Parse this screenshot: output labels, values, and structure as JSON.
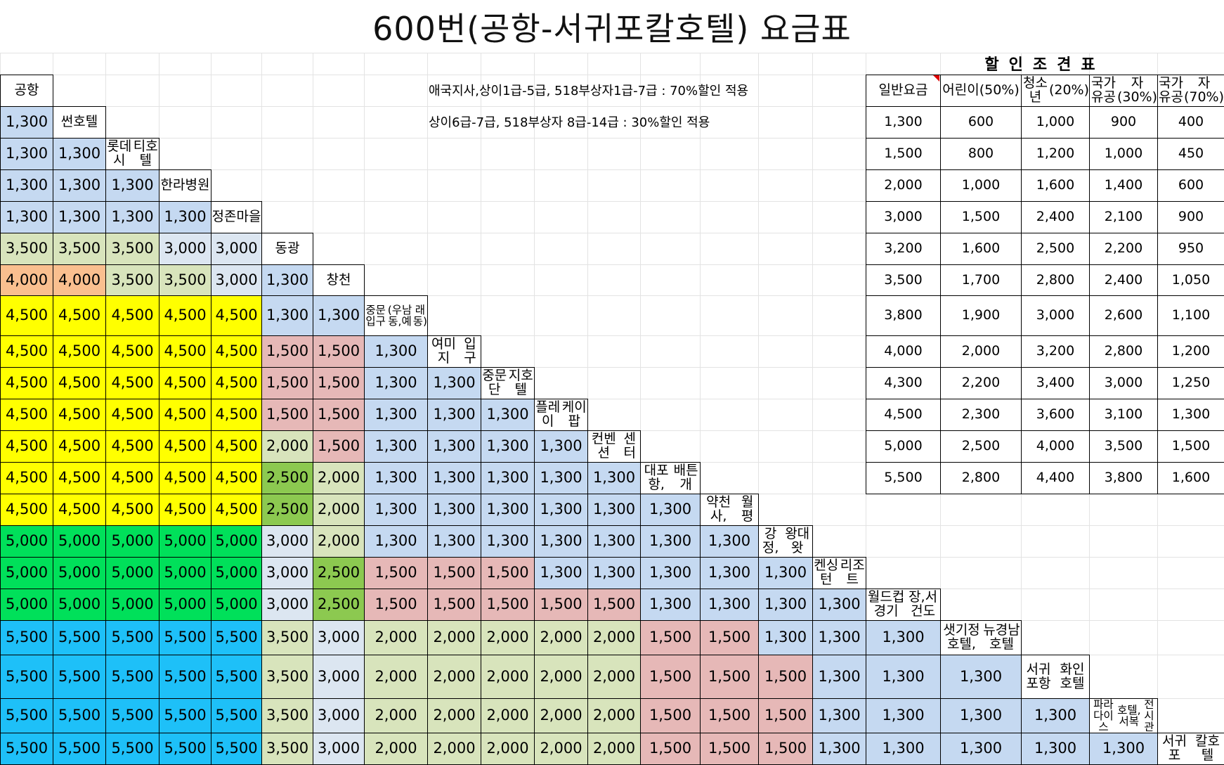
{
  "title": "600번(공항-서귀포칼호텔) 요금표",
  "stops": [
    "공항",
    "썬호텔",
    "롯데시티호텔",
    "한라병원",
    "정존마을",
    "동광",
    "창천",
    "중문입구(우남동,예래동)",
    "여미지입구",
    "중문단지호텔",
    "플레이케이팝",
    "컨벤션센터",
    "대포항,배튼개",
    "약천사,월평",
    "강정,왕대왓",
    "켄싱턴리조트",
    "월드컵경기장,서건도",
    "샛기정호텔,뉴경남호텔",
    "서귀포항화인호텔",
    "파라다이스호텔,서복전시관",
    "서귀포칼호텔"
  ],
  "stop_labels": [
    [
      "공항"
    ],
    [
      "썬호텔"
    ],
    [
      "롯데시",
      "티호텔"
    ],
    [
      "한라",
      "병원"
    ],
    [
      "정존",
      "마을"
    ],
    [
      "동광"
    ],
    [
      "창천"
    ],
    [
      "중문입구",
      "(우남동,예",
      "래동)"
    ],
    [
      "여미지",
      "입구"
    ],
    [
      "중문단",
      "지호텔"
    ],
    [
      "플레이",
      "케이팝"
    ],
    [
      "컨벤션",
      "센터"
    ],
    [
      "대포항,",
      "배튼개"
    ],
    [
      "약천사,",
      "월평"
    ],
    [
      "강정,",
      "왕대왓"
    ],
    [
      "켄싱턴",
      "리조트"
    ],
    [
      "월드컵경기",
      "장,서건도"
    ],
    [
      "샛기정호텔,",
      "뉴경남호텔"
    ],
    [
      "서귀포항",
      "화인호텔"
    ],
    [
      "파라다이스",
      "호텔,서복",
      "전시관"
    ],
    [
      "서귀포",
      "칼호텔"
    ]
  ],
  "fares": [
    [
      "1,300"
    ],
    [
      "1,300",
      "1,300"
    ],
    [
      "1,300",
      "1,300",
      "1,300"
    ],
    [
      "1,300",
      "1,300",
      "1,300",
      "1,300"
    ],
    [
      "3,500",
      "3,500",
      "3,500",
      "3,000",
      "3,000"
    ],
    [
      "4,000",
      "4,000",
      "3,500",
      "3,500",
      "3,000",
      "1,300"
    ],
    [
      "4,500",
      "4,500",
      "4,500",
      "4,500",
      "4,500",
      "1,300",
      "1,300"
    ],
    [
      "4,500",
      "4,500",
      "4,500",
      "4,500",
      "4,500",
      "1,500",
      "1,500",
      "1,300"
    ],
    [
      "4,500",
      "4,500",
      "4,500",
      "4,500",
      "4,500",
      "1,500",
      "1,500",
      "1,300",
      "1,300"
    ],
    [
      "4,500",
      "4,500",
      "4,500",
      "4,500",
      "4,500",
      "1,500",
      "1,500",
      "1,300",
      "1,300",
      "1,300"
    ],
    [
      "4,500",
      "4,500",
      "4,500",
      "4,500",
      "4,500",
      "2,000",
      "1,500",
      "1,300",
      "1,300",
      "1,300",
      "1,300"
    ],
    [
      "4,500",
      "4,500",
      "4,500",
      "4,500",
      "4,500",
      "2,500",
      "2,000",
      "1,300",
      "1,300",
      "1,300",
      "1,300",
      "1,300"
    ],
    [
      "4,500",
      "4,500",
      "4,500",
      "4,500",
      "4,500",
      "2,500",
      "2,000",
      "1,300",
      "1,300",
      "1,300",
      "1,300",
      "1,300",
      "1,300"
    ],
    [
      "5,000",
      "5,000",
      "5,000",
      "5,000",
      "5,000",
      "3,000",
      "2,000",
      "1,300",
      "1,300",
      "1,300",
      "1,300",
      "1,300",
      "1,300",
      "1,300"
    ],
    [
      "5,000",
      "5,000",
      "5,000",
      "5,000",
      "5,000",
      "3,000",
      "2,500",
      "1,500",
      "1,500",
      "1,500",
      "1,300",
      "1,300",
      "1,300",
      "1,300",
      "1,300"
    ],
    [
      "5,000",
      "5,000",
      "5,000",
      "5,000",
      "5,000",
      "3,000",
      "2,500",
      "1,500",
      "1,500",
      "1,500",
      "1,500",
      "1,500",
      "1,300",
      "1,300",
      "1,300",
      "1,300"
    ],
    [
      "5,500",
      "5,500",
      "5,500",
      "5,500",
      "5,500",
      "3,500",
      "3,000",
      "2,000",
      "2,000",
      "2,000",
      "2,000",
      "2,000",
      "1,500",
      "1,500",
      "1,300",
      "1,300",
      "1,300"
    ],
    [
      "5,500",
      "5,500",
      "5,500",
      "5,500",
      "5,500",
      "3,500",
      "3,000",
      "2,000",
      "2,000",
      "2,000",
      "2,000",
      "2,000",
      "1,500",
      "1,500",
      "1,500",
      "1,300",
      "1,300",
      "1,300"
    ],
    [
      "5,500",
      "5,500",
      "5,500",
      "5,500",
      "5,500",
      "3,500",
      "3,000",
      "2,000",
      "2,000",
      "2,000",
      "2,000",
      "2,000",
      "1,500",
      "1,500",
      "1,500",
      "1,300",
      "1,300",
      "1,300",
      "1,300"
    ],
    [
      "5,500",
      "5,500",
      "5,500",
      "5,500",
      "5,500",
      "3,500",
      "3,000",
      "2,000",
      "2,000",
      "2,000",
      "2,000",
      "2,000",
      "1,500",
      "1,500",
      "1,500",
      "1,300",
      "1,300",
      "1,300",
      "1,300",
      "1,300"
    ]
  ],
  "fare_colors": {
    "1,300": "#c5d9f1",
    "1,500": "#e6b8b7",
    "2,000": "#d8e4bc",
    "2,500": "#8cc950",
    "3,000": "#dce6f1",
    "3,500": "#d8e4bc",
    "4,000": "#fabf8f",
    "4,500": "#ffff00",
    "5,000": "#00e05a",
    "5,500": "#1ec0f8"
  },
  "notes": [
    "애국지사,상이1급-5급, 518부상자1급-7급 : 70%할인 적용",
    "상이6급-7급, 518부상자 8급-14급 : 30%할인 적용"
  ],
  "discount": {
    "title": "할인조견표",
    "headers": [
      [
        "일반요금"
      ],
      [
        "어린이",
        "(50%)"
      ],
      [
        "청소년",
        "(20%)"
      ],
      [
        "국가유공",
        "자(30%)"
      ],
      [
        "국가유공",
        "자(70%)"
      ]
    ],
    "rows": [
      [
        "1,300",
        "600",
        "1,000",
        "900",
        "400"
      ],
      [
        "1,500",
        "800",
        "1,200",
        "1,000",
        "450"
      ],
      [
        "2,000",
        "1,000",
        "1,600",
        "1,400",
        "600"
      ],
      [
        "3,000",
        "1,500",
        "2,400",
        "2,100",
        "900"
      ],
      [
        "3,200",
        "1,600",
        "2,500",
        "2,200",
        "950"
      ],
      [
        "3,500",
        "1,700",
        "2,800",
        "2,400",
        "1,050"
      ],
      [
        "3,800",
        "1,900",
        "3,000",
        "2,600",
        "1,100"
      ],
      [
        "4,000",
        "2,000",
        "3,200",
        "2,800",
        "1,200"
      ],
      [
        "4,300",
        "2,200",
        "3,400",
        "3,000",
        "1,250"
      ],
      [
        "4,500",
        "2,300",
        "3,600",
        "3,100",
        "1,300"
      ],
      [
        "5,000",
        "2,500",
        "4,000",
        "3,500",
        "1,500"
      ],
      [
        "5,500",
        "2,800",
        "4,400",
        "3,800",
        "1,600"
      ]
    ]
  }
}
